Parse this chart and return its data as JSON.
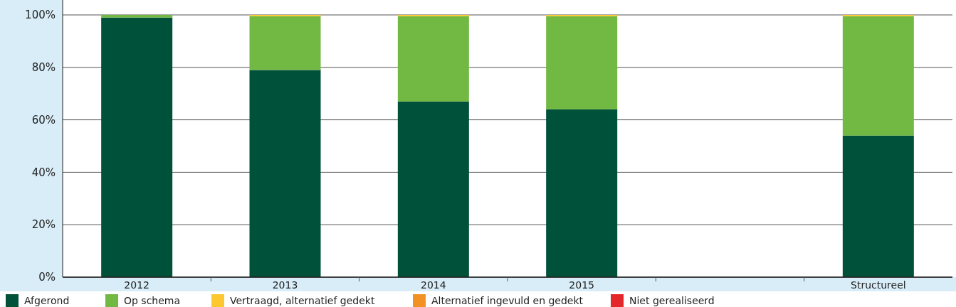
{
  "chart_data": {
    "type": "bar",
    "stacked": true,
    "categories": [
      "2012",
      "2013",
      "2014",
      "2015",
      null,
      "Structureel"
    ],
    "series": [
      {
        "name": "Afgerond",
        "color": "#00513a",
        "values": [
          99,
          79,
          67,
          64,
          null,
          54
        ]
      },
      {
        "name": "Op schema",
        "color": "#72b944",
        "values": [
          1,
          20.5,
          32.5,
          35.5,
          null,
          45.5
        ]
      },
      {
        "name": "Vertraagd, alternatief gedekt",
        "color": "#fdc82f",
        "values": [
          0,
          0.5,
          0.5,
          0.5,
          null,
          0.5
        ]
      },
      {
        "name": "Alternatief ingevuld en gedekt",
        "color": "#f39224",
        "values": [
          0,
          0,
          0,
          0,
          null,
          0
        ]
      },
      {
        "name": "Niet gerealiseerd",
        "color": "#e3272b",
        "values": [
          0,
          0,
          0,
          0,
          null,
          0
        ]
      }
    ],
    "ylim": [
      0,
      100
    ],
    "yticks": [
      {
        "value": 0,
        "label": "0%"
      },
      {
        "value": 20,
        "label": "20%"
      },
      {
        "value": 40,
        "label": "40%"
      },
      {
        "value": 60,
        "label": "60%"
      },
      {
        "value": 80,
        "label": "80%"
      },
      {
        "value": 100,
        "label": "100%"
      }
    ],
    "grid": "y",
    "legend": "bottom"
  }
}
